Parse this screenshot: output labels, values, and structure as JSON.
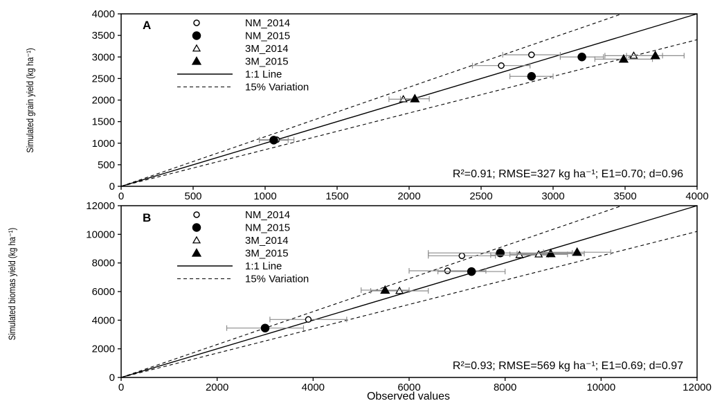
{
  "chart_data": [
    {
      "type": "scatter",
      "panel_label": "A",
      "xlim": [
        0,
        4000
      ],
      "ylim": [
        0,
        4000
      ],
      "xticks": [
        "0",
        "500",
        "1000",
        "1500",
        "2000",
        "2500",
        "3000",
        "3500",
        "4000"
      ],
      "yticks": [
        "0",
        "500",
        "1000",
        "1500",
        "2000",
        "2500",
        "3000",
        "3500",
        "4000"
      ],
      "xlabel": "",
      "ylabel": "Simulated grain yield (kg ha⁻¹)",
      "annotation": "R²=0.91; RMSE=327 kg ha⁻¹; E1=0.70; d=0.96",
      "legend_position": "top-left",
      "series": [
        {
          "name": "NM_2014",
          "marker": "circle-open",
          "points": [
            {
              "x": 1080,
              "y": 1080,
              "xerr": 120
            },
            {
              "x": 2640,
              "y": 2800,
              "xerr": 200
            },
            {
              "x": 2850,
              "y": 3050,
              "xerr": 200
            }
          ]
        },
        {
          "name": "NM_2015",
          "marker": "circle-filled",
          "points": [
            {
              "x": 1060,
              "y": 1070,
              "xerr": 100
            },
            {
              "x": 2850,
              "y": 2550,
              "xerr": 150
            },
            {
              "x": 3200,
              "y": 3000,
              "xerr": 150
            }
          ]
        },
        {
          "name": "3M_2014",
          "marker": "triangle-open",
          "points": [
            {
              "x": 1960,
              "y": 2020,
              "xerr": 100
            },
            {
              "x": 3560,
              "y": 3030,
              "xerr": 200
            }
          ]
        },
        {
          "name": "3M_2015",
          "marker": "triangle-filled",
          "points": [
            {
              "x": 2040,
              "y": 2030,
              "xerr": 100
            },
            {
              "x": 3490,
              "y": 2950,
              "xerr": 200
            },
            {
              "x": 3710,
              "y": 3030,
              "xerr": 200
            }
          ]
        }
      ],
      "reference_lines": [
        {
          "name": "1:1 Line",
          "slope": 1,
          "style": "solid"
        },
        {
          "name": "15% Variation",
          "slope": 1.15,
          "style": "dashed"
        },
        {
          "name": "15% Variation",
          "slope": 0.85,
          "style": "dashed"
        }
      ]
    },
    {
      "type": "scatter",
      "panel_label": "B",
      "xlim": [
        0,
        12000
      ],
      "ylim": [
        0,
        12000
      ],
      "xticks": [
        "0",
        "2000",
        "4000",
        "6000",
        "8000",
        "10000",
        "12000"
      ],
      "yticks": [
        "0",
        "2000",
        "4000",
        "6000",
        "8000",
        "10000",
        "12000"
      ],
      "xlabel": "Observed values",
      "ylabel": "Simulated biomas yield (kg ha⁻¹)",
      "annotation": "R²=0.93; RMSE=569 kg ha⁻¹; E1=0.69; d=0.97",
      "legend_position": "top-left",
      "series": [
        {
          "name": "NM_2014",
          "marker": "circle-open",
          "points": [
            {
              "x": 3900,
              "y": 4050,
              "xerr": 800
            },
            {
              "x": 7100,
              "y": 8500,
              "xerr": 700
            },
            {
              "x": 6800,
              "y": 7450,
              "xerr": 800
            }
          ]
        },
        {
          "name": "NM_2015",
          "marker": "circle-filled",
          "points": [
            {
              "x": 3000,
              "y": 3450,
              "xerr": 800
            },
            {
              "x": 7300,
              "y": 7400,
              "xerr": 700
            },
            {
              "x": 7900,
              "y": 8700,
              "xerr": 1500
            }
          ]
        },
        {
          "name": "3M_2014",
          "marker": "triangle-open",
          "points": [
            {
              "x": 5800,
              "y": 6050,
              "xerr": 600
            },
            {
              "x": 8300,
              "y": 8550,
              "xerr": 600
            },
            {
              "x": 8700,
              "y": 8600,
              "xerr": 600
            }
          ]
        },
        {
          "name": "3M_2015",
          "marker": "triangle-filled",
          "points": [
            {
              "x": 5500,
              "y": 6100,
              "xerr": 500
            },
            {
              "x": 8950,
              "y": 8650,
              "xerr": 700
            },
            {
              "x": 9500,
              "y": 8750,
              "xerr": 700
            }
          ]
        }
      ],
      "reference_lines": [
        {
          "name": "1:1 Line",
          "slope": 1,
          "style": "solid"
        },
        {
          "name": "15% Variation",
          "slope": 1.15,
          "style": "dashed"
        },
        {
          "name": "15% Variation",
          "slope": 0.85,
          "style": "dashed"
        }
      ]
    }
  ],
  "legend": [
    {
      "label": "NM_2014",
      "marker": "circle-open"
    },
    {
      "label": "NM_2015",
      "marker": "circle-filled"
    },
    {
      "label": "3M_2014",
      "marker": "triangle-open"
    },
    {
      "label": "3M_2015",
      "marker": "triangle-filled"
    },
    {
      "label": "1:1 Line",
      "marker": "line-solid"
    },
    {
      "label": "15% Variation",
      "marker": "line-dashed"
    }
  ],
  "colors": {
    "ink": "#000000",
    "background": "#ffffff",
    "errorbar": "#8c8c8c"
  }
}
